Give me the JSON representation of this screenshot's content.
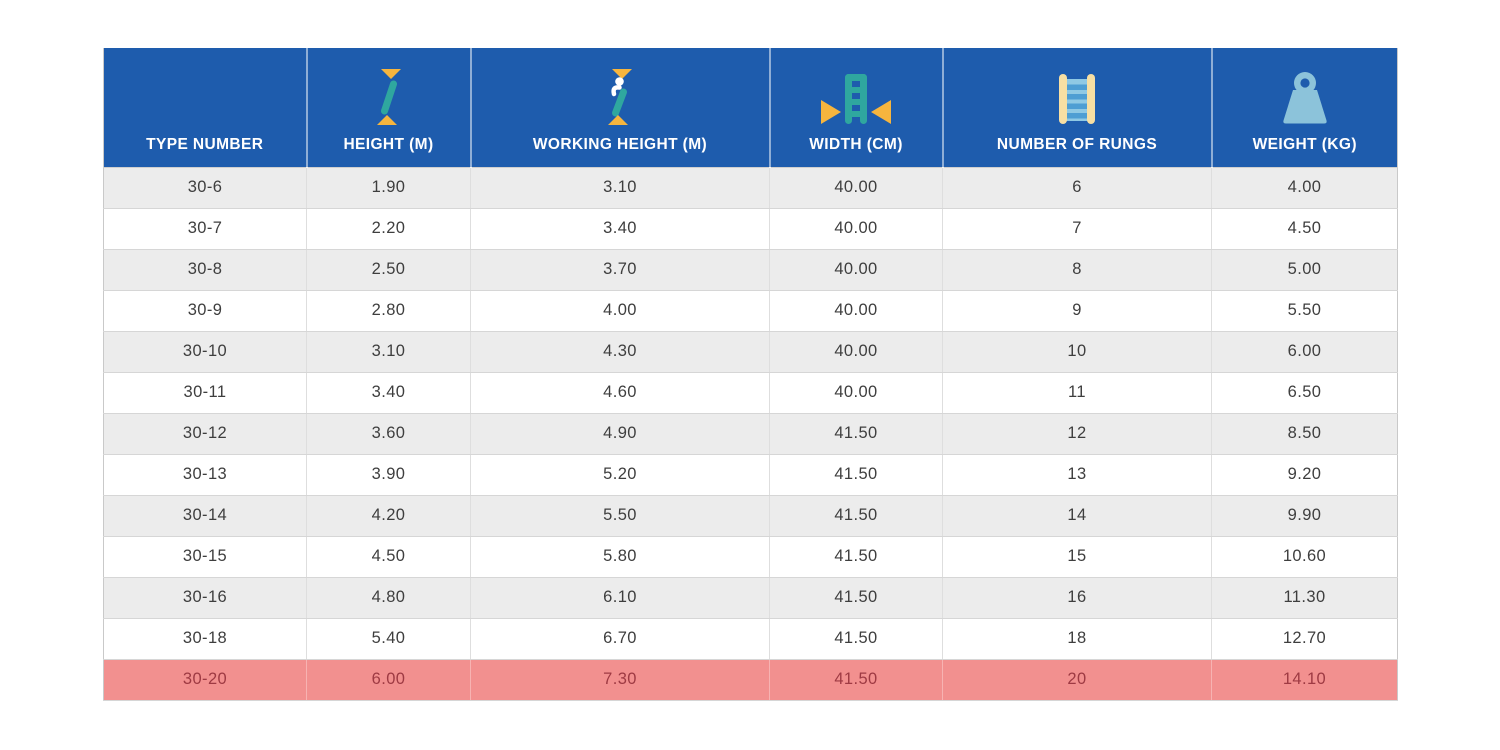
{
  "table": {
    "columns": [
      {
        "id": "type_number",
        "label": "TYPE NUMBER",
        "icon": null
      },
      {
        "id": "height_m",
        "label": "HEIGHT (M)",
        "icon": "height-icon"
      },
      {
        "id": "working_height_m",
        "label": "WORKING HEIGHT (M)",
        "icon": "working-height-icon"
      },
      {
        "id": "width_cm",
        "label": "WIDTH (CM)",
        "icon": "ladder-width-icon"
      },
      {
        "id": "number_of_rungs",
        "label": "NUMBER OF RUNGS",
        "icon": "ladder-rungs-icon"
      },
      {
        "id": "weight_kg",
        "label": "WEIGHT (KG)",
        "icon": "weight-icon"
      }
    ],
    "rows": [
      {
        "type_number": "30-6",
        "height_m": "1.90",
        "working_height_m": "3.10",
        "width_cm": "40.00",
        "number_of_rungs": "6",
        "weight_kg": "4.00",
        "highlight": false
      },
      {
        "type_number": "30-7",
        "height_m": "2.20",
        "working_height_m": "3.40",
        "width_cm": "40.00",
        "number_of_rungs": "7",
        "weight_kg": "4.50",
        "highlight": false
      },
      {
        "type_number": "30-8",
        "height_m": "2.50",
        "working_height_m": "3.70",
        "width_cm": "40.00",
        "number_of_rungs": "8",
        "weight_kg": "5.00",
        "highlight": false
      },
      {
        "type_number": "30-9",
        "height_m": "2.80",
        "working_height_m": "4.00",
        "width_cm": "40.00",
        "number_of_rungs": "9",
        "weight_kg": "5.50",
        "highlight": false
      },
      {
        "type_number": "30-10",
        "height_m": "3.10",
        "working_height_m": "4.30",
        "width_cm": "40.00",
        "number_of_rungs": "10",
        "weight_kg": "6.00",
        "highlight": false
      },
      {
        "type_number": "30-11",
        "height_m": "3.40",
        "working_height_m": "4.60",
        "width_cm": "40.00",
        "number_of_rungs": "11",
        "weight_kg": "6.50",
        "highlight": false
      },
      {
        "type_number": "30-12",
        "height_m": "3.60",
        "working_height_m": "4.90",
        "width_cm": "41.50",
        "number_of_rungs": "12",
        "weight_kg": "8.50",
        "highlight": false
      },
      {
        "type_number": "30-13",
        "height_m": "3.90",
        "working_height_m": "5.20",
        "width_cm": "41.50",
        "number_of_rungs": "13",
        "weight_kg": "9.20",
        "highlight": false
      },
      {
        "type_number": "30-14",
        "height_m": "4.20",
        "working_height_m": "5.50",
        "width_cm": "41.50",
        "number_of_rungs": "14",
        "weight_kg": "9.90",
        "highlight": false
      },
      {
        "type_number": "30-15",
        "height_m": "4.50",
        "working_height_m": "5.80",
        "width_cm": "41.50",
        "number_of_rungs": "15",
        "weight_kg": "10.60",
        "highlight": false
      },
      {
        "type_number": "30-16",
        "height_m": "4.80",
        "working_height_m": "6.10",
        "width_cm": "41.50",
        "number_of_rungs": "16",
        "weight_kg": "11.30",
        "highlight": false
      },
      {
        "type_number": "30-18",
        "height_m": "5.40",
        "working_height_m": "6.70",
        "width_cm": "41.50",
        "number_of_rungs": "18",
        "weight_kg": "12.70",
        "highlight": false
      },
      {
        "type_number": "30-20",
        "height_m": "6.00",
        "working_height_m": "7.30",
        "width_cm": "41.50",
        "number_of_rungs": "20",
        "weight_kg": "14.10",
        "highlight": true
      }
    ]
  },
  "colors": {
    "header_bg": "#1e5cad",
    "header_text": "#ffffff",
    "row_alt_bg": "#ececec",
    "row_bg": "#ffffff",
    "body_text": "#3e3e3e",
    "highlight_bg": "#f2908f",
    "highlight_text": "#9e3a43",
    "grid_line": "#d6d6d6",
    "icon_teal": "#2fa79f",
    "icon_yellow": "#f6b53e",
    "icon_cream": "#f7dfa3",
    "icon_light_blue": "#8fc9e4",
    "icon_mid_blue": "#4e9ed3",
    "icon_powder_blue": "#8cc3da"
  }
}
